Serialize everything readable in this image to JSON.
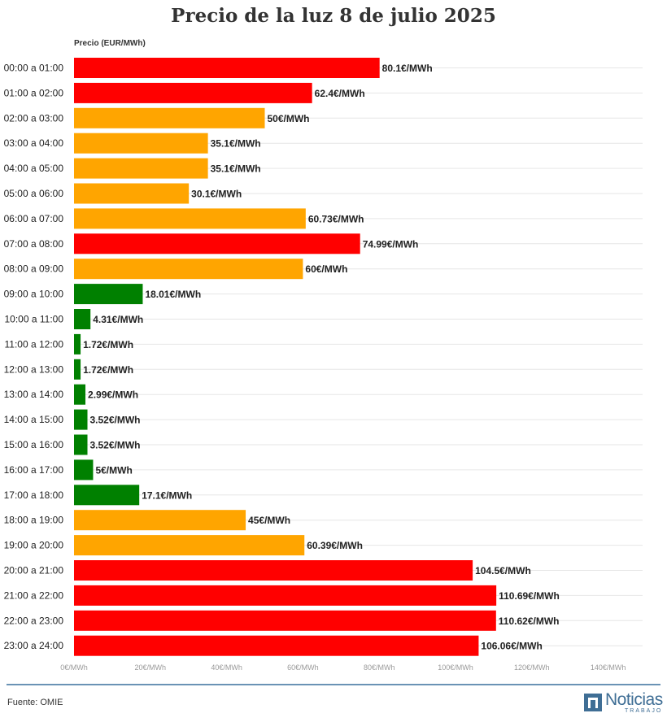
{
  "chart_data": {
    "type": "bar",
    "orientation": "horizontal",
    "title": "Precio de la luz 8 de julio 2025",
    "ylabel": "Precio (EUR/MWh)",
    "xlim": [
      0,
      140
    ],
    "x_ticks": [
      "0€/MWh",
      "20€/MWh",
      "40€/MWh",
      "60€/MWh",
      "80€/MWh",
      "100€/MWh",
      "120€/MWh",
      "140€/MWh"
    ],
    "x_tick_values": [
      0,
      20,
      40,
      60,
      80,
      100,
      120,
      140
    ],
    "grid": true,
    "categories": [
      "00:00 a 01:00",
      "01:00 a 02:00",
      "02:00 a 03:00",
      "03:00 a 04:00",
      "04:00 a 05:00",
      "05:00 a 06:00",
      "06:00 a 07:00",
      "07:00 a 08:00",
      "08:00 a 09:00",
      "09:00 a 10:00",
      "10:00 a 11:00",
      "11:00 a 12:00",
      "12:00 a 13:00",
      "13:00 a 14:00",
      "14:00 a 15:00",
      "15:00 a 16:00",
      "16:00 a 17:00",
      "17:00 a 18:00",
      "18:00 a 19:00",
      "19:00 a 20:00",
      "20:00 a 21:00",
      "21:00 a 22:00",
      "22:00 a 23:00",
      "23:00 a 24:00"
    ],
    "values": [
      80.1,
      62.4,
      50,
      35.1,
      35.1,
      30.1,
      60.73,
      74.99,
      60,
      18.01,
      4.31,
      1.72,
      1.72,
      2.99,
      3.52,
      3.52,
      5,
      17.1,
      45,
      60.39,
      104.5,
      110.69,
      110.62,
      106.06
    ],
    "labels": [
      "80.1€/MWh",
      "62.4€/MWh",
      "50€/MWh",
      "35.1€/MWh",
      "35.1€/MWh",
      "30.1€/MWh",
      "60.73€/MWh",
      "74.99€/MWh",
      "60€/MWh",
      "18.01€/MWh",
      "4.31€/MWh",
      "1.72€/MWh",
      "1.72€/MWh",
      "2.99€/MWh",
      "3.52€/MWh",
      "3.52€/MWh",
      "5€/MWh",
      "17.1€/MWh",
      "45€/MWh",
      "60.39€/MWh",
      "104.5€/MWh",
      "110.69€/MWh",
      "110.62€/MWh",
      "106.06€/MWh"
    ],
    "bar_colors": [
      "red",
      "red",
      "orange",
      "orange",
      "orange",
      "orange",
      "orange",
      "red",
      "orange",
      "green",
      "green",
      "green",
      "green",
      "green",
      "green",
      "green",
      "green",
      "green",
      "orange",
      "orange",
      "red",
      "red",
      "red",
      "red"
    ],
    "palette": {
      "red": "#ff0000",
      "orange": "#ffa500",
      "green": "#008000"
    }
  },
  "footer": {
    "source": "Fuente: OMIE",
    "logo_text": "Noticias",
    "logo_sub": "TRABAJO"
  }
}
